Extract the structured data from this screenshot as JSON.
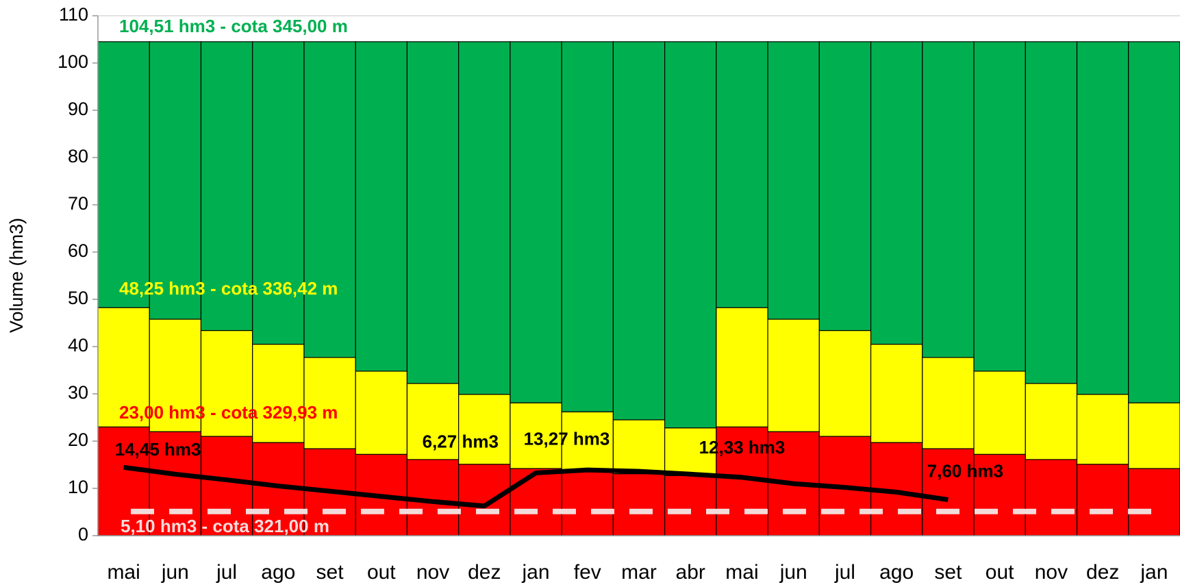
{
  "chart_data": {
    "type": "bar",
    "y_label": "Volume (hm3)",
    "categories": [
      "mai",
      "jun",
      "jul",
      "ago",
      "set",
      "out",
      "nov",
      "dez",
      "jan",
      "fev",
      "mar",
      "abr",
      "mai",
      "jun",
      "jul",
      "ago",
      "set",
      "out",
      "nov",
      "dez",
      "jan"
    ],
    "series": [
      {
        "color": "#ff0000",
        "values": [
          23.0,
          22.0,
          21.0,
          19.7,
          18.4,
          17.2,
          16.1,
          15.1,
          14.2,
          13.6,
          13.1,
          12.7,
          23.0,
          22.0,
          21.0,
          19.7,
          18.4,
          17.2,
          16.1,
          15.1,
          14.2
        ]
      },
      {
        "color": "#ffff00",
        "values": [
          25.25,
          23.8,
          22.4,
          20.8,
          19.3,
          17.6,
          16.1,
          14.8,
          13.9,
          12.6,
          11.4,
          10.1,
          25.25,
          23.8,
          22.4,
          20.8,
          19.3,
          17.6,
          16.1,
          14.8,
          13.9
        ]
      },
      {
        "color": "#00b050",
        "values": [
          56.26,
          58.71,
          61.11,
          64.01,
          66.81,
          69.71,
          72.31,
          74.61,
          76.41,
          78.31,
          80.01,
          81.71,
          56.26,
          58.71,
          61.11,
          64.01,
          66.81,
          69.71,
          72.31,
          74.61,
          76.41
        ]
      }
    ],
    "line": {
      "type": "line",
      "color": "#000000",
      "values": [
        14.45,
        13.0,
        11.8,
        10.5,
        9.4,
        8.3,
        7.2,
        6.27,
        13.27,
        13.9,
        13.6,
        13.0,
        12.33,
        11.0,
        10.2,
        9.2,
        7.6,
        null,
        null,
        null,
        null
      ],
      "value_labels": [
        "14,45 hm3",
        null,
        null,
        null,
        null,
        null,
        null,
        "6,27 hm3",
        "13,27 hm3",
        null,
        null,
        null,
        "12,33 hm3",
        null,
        null,
        null,
        "7,60 hm3",
        null,
        null,
        null,
        null
      ]
    },
    "reference_line": {
      "value": 5.1,
      "color": "#f2dcdb",
      "label": "5,10 hm3 - cota 321,00 m"
    },
    "annotations": [
      {
        "text": "104,51 hm3 - cota 345,00 m",
        "color": "#00b050"
      },
      {
        "text": "48,25 hm3 - cota 336,42 m",
        "color": "#ffff00"
      },
      {
        "text": "23,00 hm3 - cota 329,93 m",
        "color": "#ff0000"
      }
    ],
    "ylim": [
      0,
      110
    ],
    "yticks": [
      0,
      10,
      20,
      30,
      40,
      50,
      60,
      70,
      80,
      90,
      100,
      110
    ],
    "grid": true
  }
}
